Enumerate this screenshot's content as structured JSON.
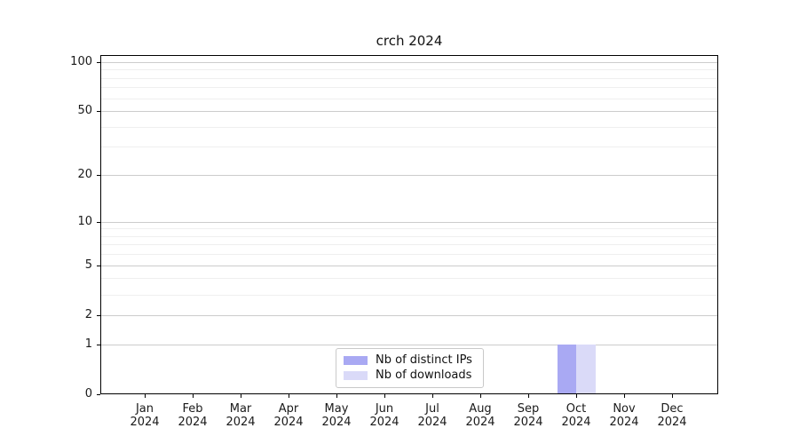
{
  "chart_data": {
    "type": "bar",
    "title": "crch 2024",
    "categories": [
      "Jan",
      "Feb",
      "Mar",
      "Apr",
      "May",
      "Jun",
      "Jul",
      "Aug",
      "Sep",
      "Oct",
      "Nov",
      "Dec"
    ],
    "category_year": "2024",
    "series": [
      {
        "name": "Nb of distinct IPs",
        "color": "#a9a9f3",
        "values": [
          0,
          0,
          0,
          0,
          0,
          0,
          0,
          0,
          0,
          1,
          0,
          0
        ]
      },
      {
        "name": "Nb of downloads",
        "color": "#dadaf8",
        "values": [
          0,
          0,
          0,
          0,
          0,
          0,
          0,
          0,
          0,
          1,
          0,
          0
        ]
      }
    ],
    "yscale": "log1p",
    "ylim": [
      0,
      110
    ],
    "yticks": [
      0,
      1,
      2,
      5,
      10,
      20,
      50,
      100
    ],
    "minor_gridlines": [
      3,
      4,
      6,
      7,
      8,
      9,
      30,
      40,
      60,
      70,
      80,
      90
    ],
    "grid": true,
    "legend_position": "lower-center-inside",
    "axis_color": "#000000",
    "major_grid_color": "#cccccc",
    "minor_grid_color": "#efefef"
  }
}
